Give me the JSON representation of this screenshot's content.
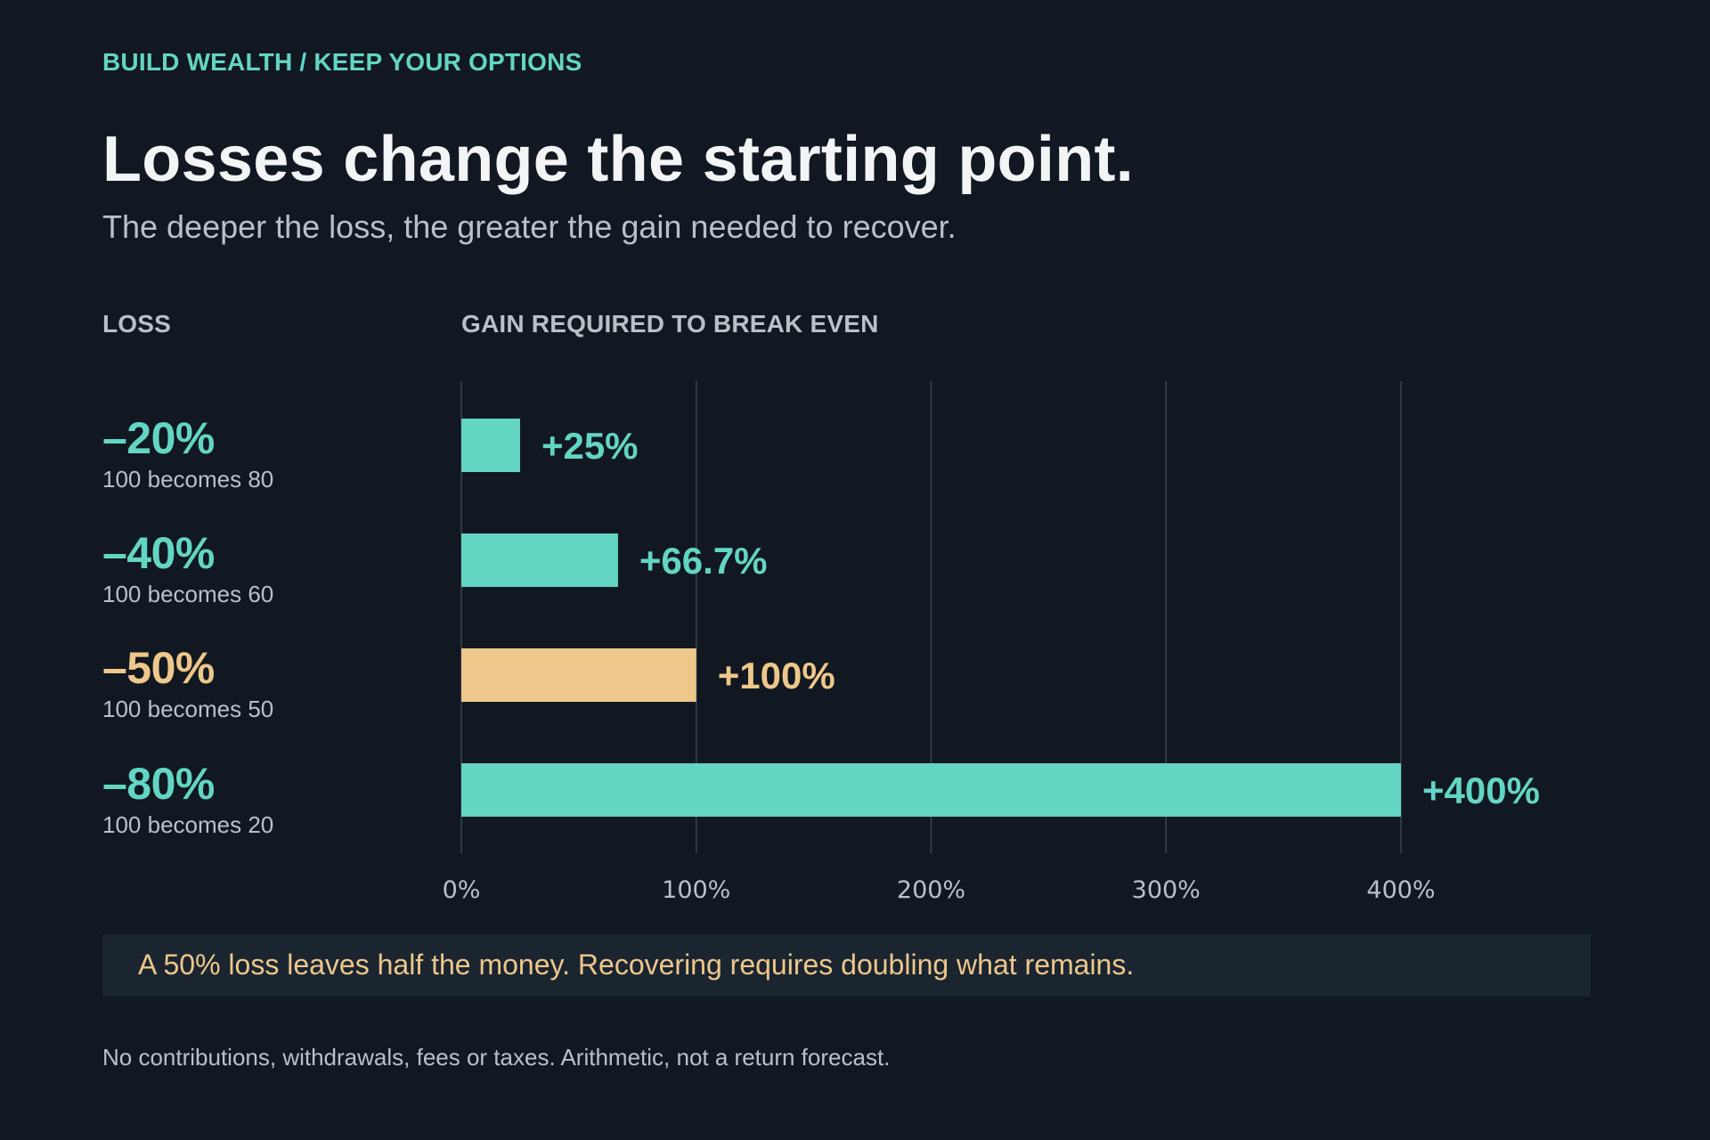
{
  "header": {
    "eyebrow": "BUILD WEALTH / KEEP YOUR OPTIONS",
    "title": "Losses change the starting point.",
    "subtitle": "The deeper the loss, the greater the gain needed to recover."
  },
  "columns": {
    "loss": "LOSS",
    "gain": "GAIN REQUIRED TO BREAK EVEN"
  },
  "colors": {
    "accent": "#63d5c3",
    "highlight": "#eec78a",
    "grid": "#3a444e",
    "background": "#111821"
  },
  "rows": [
    {
      "loss": "–20%",
      "note": "100 becomes 80"
    },
    {
      "loss": "–40%",
      "note": "100 becomes 60"
    },
    {
      "loss": "–50%",
      "note": "100 becomes 50"
    },
    {
      "loss": "–80%",
      "note": "100 becomes 20"
    }
  ],
  "chart_data": {
    "type": "bar",
    "orientation": "horizontal",
    "categories": [
      "–20%",
      "–40%",
      "–50%",
      "–80%"
    ],
    "values": [
      25,
      66.7,
      100,
      400
    ],
    "data_labels": [
      "+25%",
      "+66.7%",
      "+100%",
      "+400%"
    ],
    "highlighted_category": "–50%",
    "x_ticks": [
      "0%",
      "100%",
      "200%",
      "300%",
      "400%"
    ],
    "x_tick_values": [
      0,
      100,
      200,
      300,
      400
    ],
    "xlim": [
      0,
      400
    ],
    "grid": true
  },
  "callout": {
    "text": "A 50% loss leaves half the money. Recovering requires doubling what remains."
  },
  "footnote": "No contributions, withdrawals, fees or taxes. Arithmetic, not a return forecast."
}
